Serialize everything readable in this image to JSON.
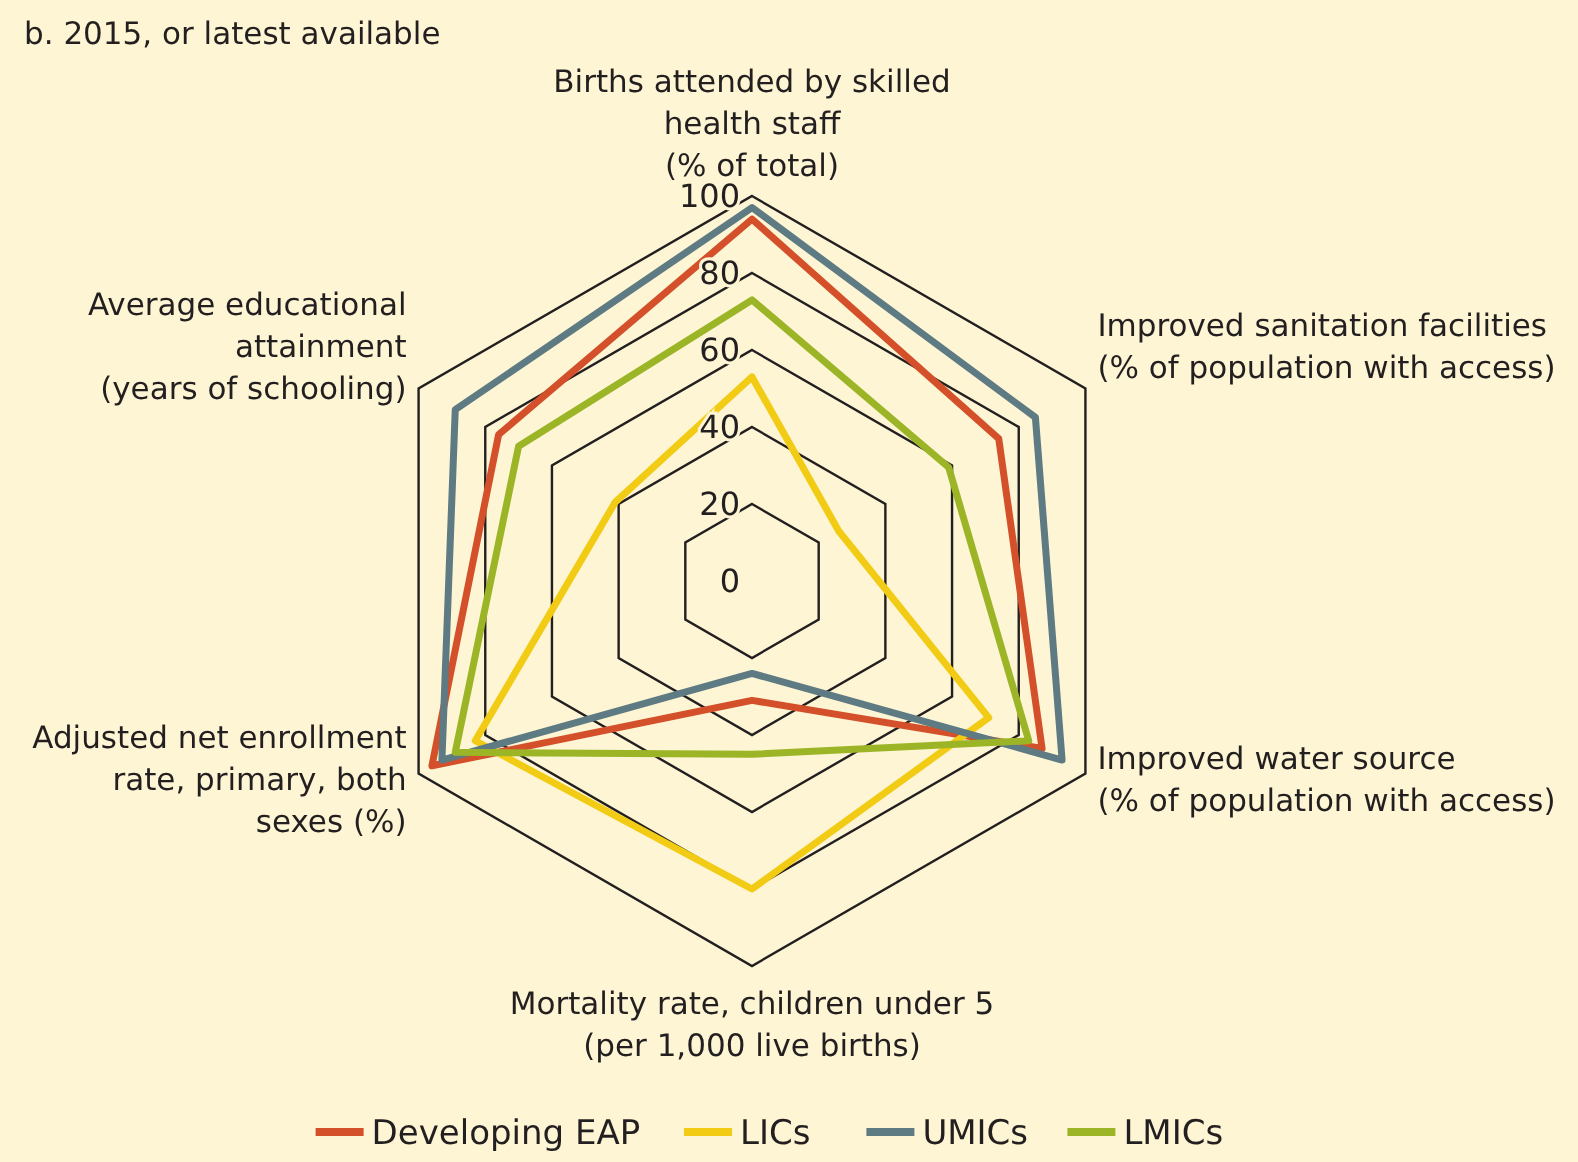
{
  "chart_data": {
    "type": "radar",
    "title": "b. 2015, or latest available",
    "categories": [
      "Births attended by skilled health staff (% of total)",
      "Improved sanitation facilities (% of population with access)",
      "Improved water source (% of population with access)",
      "Mortality rate, children under 5 (per 1,000 live births)",
      "Adjusted net enrollment rate, primary, both sexes (%)",
      "Average educational attainment (years of schooling)"
    ],
    "series": [
      {
        "name": "Developing EAP",
        "color": "#d4502a",
        "values": [
          94,
          74,
          87,
          31,
          96,
          76
        ]
      },
      {
        "name": "LICs",
        "color": "#f2cc14",
        "values": [
          53,
          26,
          71,
          80,
          83,
          41
        ]
      },
      {
        "name": "UMICs",
        "color": "#5e7a82",
        "values": [
          97,
          85,
          93,
          24,
          93,
          89
        ]
      },
      {
        "name": "LMICs",
        "color": "#9bb526",
        "values": [
          73,
          59,
          83,
          45,
          89,
          70
        ]
      }
    ],
    "ylim": [
      0,
      100
    ],
    "yticks": [
      0,
      20,
      40,
      60,
      80,
      100
    ],
    "legend": "bottom"
  }
}
